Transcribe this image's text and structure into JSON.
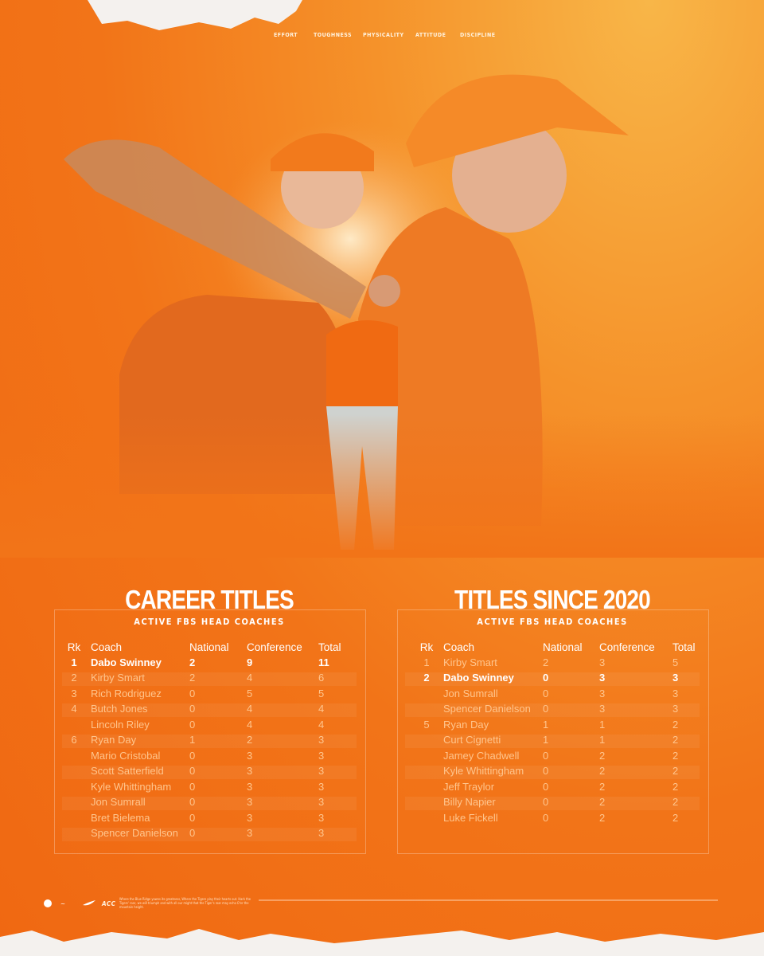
{
  "nav": [
    "EFFORT",
    "TOUGHNESS",
    "PHYSICALITY",
    "ATTITUDE",
    "DISCIPLINE"
  ],
  "tables": [
    {
      "title": "CAREER TITLES",
      "subtitle": "ACTIVE FBS HEAD COACHES",
      "columns": [
        "Rk",
        "Coach",
        "National",
        "Conference",
        "Total"
      ],
      "rows": [
        [
          1,
          "Dabo Swinney",
          2,
          9,
          11
        ],
        [
          2,
          "Kirby Smart",
          2,
          4,
          6
        ],
        [
          3,
          "Rich Rodriguez",
          0,
          5,
          5
        ],
        [
          4,
          "Butch Jones",
          0,
          4,
          4
        ],
        [
          null,
          "Lincoln Riley",
          0,
          4,
          4
        ],
        [
          6,
          "Ryan Day",
          1,
          2,
          3
        ],
        [
          null,
          "Mario Cristobal",
          0,
          3,
          3
        ],
        [
          null,
          "Scott Satterfield",
          0,
          3,
          3
        ],
        [
          null,
          "Kyle Whittingham",
          0,
          3,
          3
        ],
        [
          null,
          "Jon Sumrall",
          0,
          3,
          3
        ],
        [
          null,
          "Bret Bielema",
          0,
          3,
          3
        ],
        [
          null,
          "Spencer Danielson",
          0,
          3,
          3
        ]
      ]
    },
    {
      "title": "TITLES SINCE 2020",
      "subtitle": "ACTIVE FBS HEAD COACHES",
      "columns": [
        "Rk",
        "Coach",
        "National",
        "Conference",
        "Total"
      ],
      "rows": [
        [
          1,
          "Kirby Smart",
          2,
          3,
          5
        ],
        [
          2,
          "Dabo Swinney",
          0,
          3,
          3
        ],
        [
          null,
          "Jon Sumrall",
          0,
          3,
          3
        ],
        [
          null,
          "Spencer Danielson",
          0,
          3,
          3
        ],
        [
          5,
          "Ryan Day",
          1,
          1,
          2
        ],
        [
          null,
          "Curt Cignetti",
          1,
          1,
          2
        ],
        [
          null,
          "Jamey Chadwell",
          0,
          2,
          2
        ],
        [
          null,
          "Kyle Whittingham",
          0,
          2,
          2
        ],
        [
          null,
          "Jeff Traylor",
          0,
          2,
          2
        ],
        [
          null,
          "Billy Napier",
          0,
          2,
          2
        ],
        [
          null,
          "Luke Fickell",
          0,
          2,
          2
        ]
      ]
    }
  ],
  "footer": {
    "logos": [
      "ACC"
    ],
    "text": "Where the Blue Ridge yawns its greatness, Where the Tigers play their hearts out. Hark the Tigers' roar, we will triumph and with all our might that the Tiger's roar may echo O'er the mountain height."
  }
}
